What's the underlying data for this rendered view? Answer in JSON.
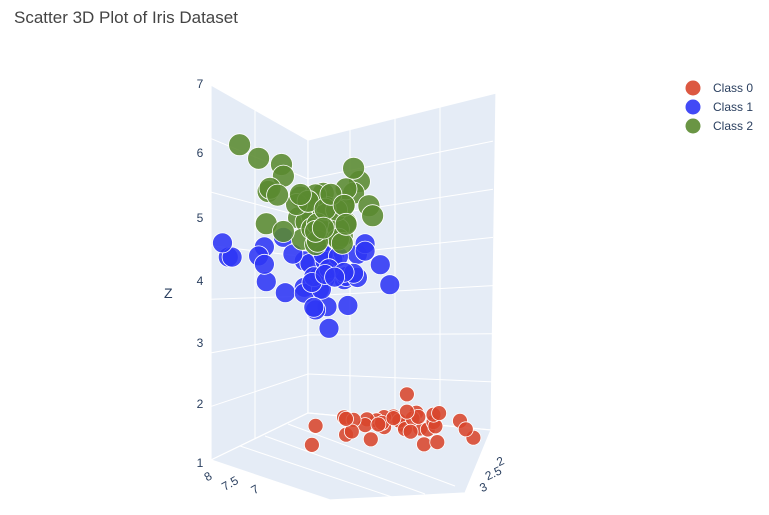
{
  "chart_data": {
    "type": "scatter",
    "title": "Scatter 3D Plot of Iris Dataset",
    "xlabel": "",
    "ylabel": "",
    "zlabel": "Z",
    "z_ticks": [
      "1",
      "2",
      "3",
      "4",
      "5",
      "6",
      "7"
    ],
    "x_ticks": [
      "8",
      "7.5",
      "7"
    ],
    "y_ticks": [
      "2",
      "2.5",
      "3"
    ],
    "legend_position": "top-right",
    "grid": true,
    "colors": {
      "Class 0": "#d8462c",
      "Class 1": "#2e36f5",
      "Class 2": "#5a8a30",
      "wall": "#e5ecf6"
    },
    "series": [
      {
        "name": "Class 0",
        "points": [
          {
            "x": 5.0,
            "y": 3.0,
            "z": 1.4
          },
          {
            "x": 4.9,
            "y": 3.2,
            "z": 1.4
          },
          {
            "x": 4.7,
            "y": 3.3,
            "z": 1.3
          },
          {
            "x": 5.1,
            "y": 3.1,
            "z": 1.5
          },
          {
            "x": 5.0,
            "y": 3.5,
            "z": 1.4
          },
          {
            "x": 5.4,
            "y": 3.3,
            "z": 1.7
          },
          {
            "x": 4.6,
            "y": 3.4,
            "z": 1.4
          },
          {
            "x": 5.0,
            "y": 3.2,
            "z": 1.5
          },
          {
            "x": 4.4,
            "y": 3.6,
            "z": 1.4
          },
          {
            "x": 4.9,
            "y": 3.0,
            "z": 1.5
          },
          {
            "x": 5.4,
            "y": 3.2,
            "z": 1.5
          },
          {
            "x": 4.8,
            "y": 3.3,
            "z": 1.6
          },
          {
            "x": 4.8,
            "y": 3.5,
            "z": 1.4
          },
          {
            "x": 4.3,
            "y": 3.7,
            "z": 1.1
          },
          {
            "x": 5.8,
            "y": 2.6,
            "z": 1.2
          },
          {
            "x": 5.7,
            "y": 2.6,
            "z": 1.5
          },
          {
            "x": 5.4,
            "y": 2.8,
            "z": 1.3
          },
          {
            "x": 5.1,
            "y": 3.3,
            "z": 1.4
          },
          {
            "x": 5.7,
            "y": 2.9,
            "z": 1.7
          },
          {
            "x": 5.1,
            "y": 3.0,
            "z": 1.5
          },
          {
            "x": 5.4,
            "y": 3.5,
            "z": 1.7
          },
          {
            "x": 5.1,
            "y": 2.9,
            "z": 1.5
          },
          {
            "x": 4.6,
            "y": 3.3,
            "z": 1.0
          },
          {
            "x": 5.1,
            "y": 3.6,
            "z": 1.7
          },
          {
            "x": 4.8,
            "y": 3.2,
            "z": 1.9
          },
          {
            "x": 5.0,
            "y": 3.4,
            "z": 1.6
          },
          {
            "x": 5.2,
            "y": 3.1,
            "z": 1.5
          },
          {
            "x": 5.2,
            "y": 3.4,
            "z": 1.4
          },
          {
            "x": 4.7,
            "y": 3.5,
            "z": 1.6
          },
          {
            "x": 4.8,
            "y": 3.2,
            "z": 1.6
          },
          {
            "x": 5.4,
            "y": 3.0,
            "z": 1.5
          },
          {
            "x": 5.2,
            "y": 2.8,
            "z": 1.5
          },
          {
            "x": 5.5,
            "y": 2.9,
            "z": 1.4
          },
          {
            "x": 4.9,
            "y": 3.1,
            "z": 1.5
          },
          {
            "x": 5.0,
            "y": 3.6,
            "z": 1.2
          },
          {
            "x": 5.5,
            "y": 3.1,
            "z": 1.3
          },
          {
            "x": 4.5,
            "y": 3.7,
            "z": 1.3
          },
          {
            "x": 5.3,
            "y": 3.1,
            "z": 1.5
          },
          {
            "x": 4.9,
            "y": 2.6,
            "z": 1.4
          }
        ]
      },
      {
        "name": "Class 1",
        "points": [
          {
            "x": 7.0,
            "y": 2.2,
            "z": 4.7
          },
          {
            "x": 6.4,
            "y": 2.0,
            "z": 4.5
          },
          {
            "x": 6.9,
            "y": 2.1,
            "z": 4.9
          },
          {
            "x": 5.5,
            "y": 3.3,
            "z": 4.0
          },
          {
            "x": 6.5,
            "y": 2.8,
            "z": 4.6
          },
          {
            "x": 5.7,
            "y": 2.8,
            "z": 4.5
          },
          {
            "x": 6.3,
            "y": 2.3,
            "z": 4.7
          },
          {
            "x": 4.9,
            "y": 2.4,
            "z": 3.3
          },
          {
            "x": 6.6,
            "y": 2.9,
            "z": 4.6
          },
          {
            "x": 5.2,
            "y": 2.7,
            "z": 3.9
          },
          {
            "x": 5.0,
            "y": 2.0,
            "z": 3.5
          },
          {
            "x": 5.9,
            "y": 3.0,
            "z": 4.2
          },
          {
            "x": 6.0,
            "y": 2.2,
            "z": 4.0
          },
          {
            "x": 6.1,
            "y": 2.9,
            "z": 4.7
          },
          {
            "x": 5.6,
            "y": 2.9,
            "z": 3.6
          },
          {
            "x": 6.7,
            "y": 3.1,
            "z": 4.4
          },
          {
            "x": 5.6,
            "y": 3.0,
            "z": 4.5
          },
          {
            "x": 5.8,
            "y": 2.7,
            "z": 4.1
          },
          {
            "x": 6.2,
            "y": 2.2,
            "z": 4.5
          },
          {
            "x": 5.6,
            "y": 2.5,
            "z": 3.9
          },
          {
            "x": 5.9,
            "y": 3.2,
            "z": 4.8
          },
          {
            "x": 6.1,
            "y": 2.8,
            "z": 4.0
          },
          {
            "x": 6.3,
            "y": 2.5,
            "z": 4.9
          },
          {
            "x": 6.1,
            "y": 2.8,
            "z": 4.7
          },
          {
            "x": 6.4,
            "y": 2.9,
            "z": 4.3
          },
          {
            "x": 6.6,
            "y": 3.0,
            "z": 4.4
          },
          {
            "x": 6.8,
            "y": 2.8,
            "z": 4.8
          },
          {
            "x": 6.7,
            "y": 3.0,
            "z": 5.0
          },
          {
            "x": 6.0,
            "y": 2.9,
            "z": 4.5
          },
          {
            "x": 5.7,
            "y": 2.6,
            "z": 3.5
          },
          {
            "x": 5.5,
            "y": 2.4,
            "z": 3.8
          },
          {
            "x": 5.5,
            "y": 2.4,
            "z": 3.7
          },
          {
            "x": 5.8,
            "y": 2.7,
            "z": 3.9
          },
          {
            "x": 6.0,
            "y": 2.7,
            "z": 5.1
          },
          {
            "x": 5.4,
            "y": 3.0,
            "z": 4.5
          },
          {
            "x": 6.0,
            "y": 3.4,
            "z": 4.5
          },
          {
            "x": 6.7,
            "y": 3.1,
            "z": 4.7
          },
          {
            "x": 6.3,
            "y": 2.3,
            "z": 4.4
          },
          {
            "x": 5.6,
            "y": 3.0,
            "z": 4.1
          },
          {
            "x": 5.5,
            "y": 2.5,
            "z": 4.0
          },
          {
            "x": 5.5,
            "y": 2.6,
            "z": 4.4
          },
          {
            "x": 6.1,
            "y": 3.0,
            "z": 4.6
          },
          {
            "x": 5.8,
            "y": 2.6,
            "z": 4.0
          },
          {
            "x": 5.0,
            "y": 2.3,
            "z": 3.3
          },
          {
            "x": 5.6,
            "y": 2.7,
            "z": 4.2
          },
          {
            "x": 5.7,
            "y": 3.0,
            "z": 4.2
          },
          {
            "x": 5.7,
            "y": 2.9,
            "z": 4.2
          },
          {
            "x": 6.2,
            "y": 2.9,
            "z": 4.3
          },
          {
            "x": 5.1,
            "y": 2.5,
            "z": 3.0
          },
          {
            "x": 5.7,
            "y": 2.8,
            "z": 4.1
          }
        ]
      },
      {
        "name": "Class 2",
        "points": [
          {
            "x": 6.3,
            "y": 3.3,
            "z": 6.0
          },
          {
            "x": 5.8,
            "y": 2.7,
            "z": 5.1
          },
          {
            "x": 7.1,
            "y": 3.0,
            "z": 5.9
          },
          {
            "x": 6.3,
            "y": 2.9,
            "z": 5.6
          },
          {
            "x": 6.5,
            "y": 3.0,
            "z": 5.8
          },
          {
            "x": 7.6,
            "y": 3.0,
            "z": 6.6
          },
          {
            "x": 4.9,
            "y": 2.5,
            "z": 4.5
          },
          {
            "x": 7.3,
            "y": 2.9,
            "z": 6.3
          },
          {
            "x": 6.7,
            "y": 2.5,
            "z": 5.8
          },
          {
            "x": 7.2,
            "y": 3.6,
            "z": 6.1
          },
          {
            "x": 6.5,
            "y": 3.2,
            "z": 5.1
          },
          {
            "x": 6.4,
            "y": 2.7,
            "z": 5.3
          },
          {
            "x": 6.8,
            "y": 3.0,
            "z": 5.5
          },
          {
            "x": 5.7,
            "y": 2.5,
            "z": 5.0
          },
          {
            "x": 5.8,
            "y": 2.8,
            "z": 5.1
          },
          {
            "x": 6.4,
            "y": 3.2,
            "z": 5.3
          },
          {
            "x": 6.5,
            "y": 3.0,
            "z": 5.5
          },
          {
            "x": 7.7,
            "y": 3.8,
            "z": 6.7
          },
          {
            "x": 7.7,
            "y": 2.6,
            "z": 6.9
          },
          {
            "x": 6.0,
            "y": 2.2,
            "z": 5.0
          },
          {
            "x": 6.9,
            "y": 3.2,
            "z": 5.7
          },
          {
            "x": 5.6,
            "y": 2.8,
            "z": 4.9
          },
          {
            "x": 7.7,
            "y": 2.8,
            "z": 6.7
          },
          {
            "x": 6.3,
            "y": 2.7,
            "z": 4.9
          },
          {
            "x": 6.7,
            "y": 3.3,
            "z": 5.7
          },
          {
            "x": 7.2,
            "y": 3.2,
            "z": 6.0
          },
          {
            "x": 6.2,
            "y": 2.8,
            "z": 4.8
          },
          {
            "x": 6.1,
            "y": 3.0,
            "z": 4.9
          },
          {
            "x": 6.4,
            "y": 2.8,
            "z": 5.6
          },
          {
            "x": 7.2,
            "y": 3.0,
            "z": 5.8
          },
          {
            "x": 7.4,
            "y": 2.8,
            "z": 6.1
          },
          {
            "x": 7.9,
            "y": 3.8,
            "z": 6.4
          },
          {
            "x": 6.4,
            "y": 2.8,
            "z": 5.6
          },
          {
            "x": 6.3,
            "y": 2.8,
            "z": 5.1
          },
          {
            "x": 6.1,
            "y": 2.6,
            "z": 5.6
          },
          {
            "x": 7.7,
            "y": 3.0,
            "z": 6.1
          },
          {
            "x": 6.3,
            "y": 3.4,
            "z": 5.6
          },
          {
            "x": 6.4,
            "y": 3.1,
            "z": 5.5
          },
          {
            "x": 6.0,
            "y": 3.0,
            "z": 4.8
          },
          {
            "x": 6.9,
            "y": 3.1,
            "z": 5.4
          },
          {
            "x": 6.7,
            "y": 3.1,
            "z": 5.6
          },
          {
            "x": 6.9,
            "y": 3.1,
            "z": 5.1
          },
          {
            "x": 6.8,
            "y": 3.2,
            "z": 5.9
          },
          {
            "x": 6.7,
            "y": 3.3,
            "z": 5.7
          },
          {
            "x": 6.7,
            "y": 3.0,
            "z": 5.2
          },
          {
            "x": 6.3,
            "y": 2.5,
            "z": 5.0
          },
          {
            "x": 6.5,
            "y": 3.0,
            "z": 5.2
          },
          {
            "x": 6.2,
            "y": 3.4,
            "z": 5.4
          },
          {
            "x": 5.9,
            "y": 3.0,
            "z": 5.1
          }
        ]
      }
    ]
  }
}
